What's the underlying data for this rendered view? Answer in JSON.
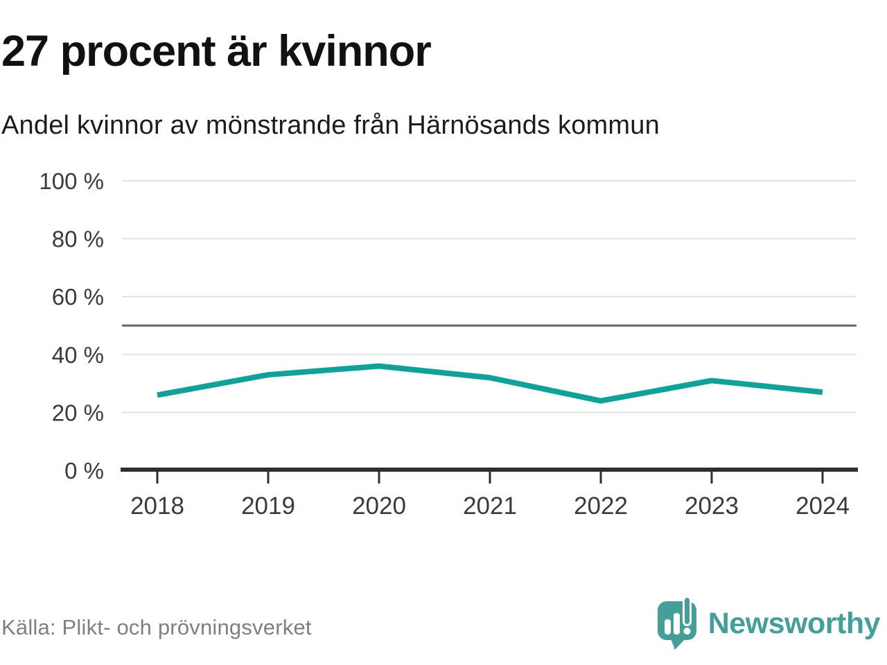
{
  "header": {
    "title": "27 procent är kvinnor",
    "subtitle": "Andel kvinnor av mönstrande från Härnösands kommun"
  },
  "chart_data": {
    "type": "line",
    "title": "27 procent är kvinnor",
    "subtitle": "Andel kvinnor av mönstrande från Härnösands kommun",
    "x": [
      2018,
      2019,
      2020,
      2021,
      2022,
      2023,
      2024
    ],
    "series": [
      {
        "name": "Andel kvinnor av mönstrande",
        "values": [
          26,
          33,
          36,
          32,
          24,
          31,
          27
        ]
      }
    ],
    "ylim": [
      0,
      100
    ],
    "yticks": [
      0,
      20,
      40,
      60,
      80,
      100
    ],
    "ytick_suffix": " %",
    "reference_line": 50,
    "grid": true,
    "legend": "none",
    "colors": {
      "line": "#12a19a",
      "grid": "#e3e3e3",
      "reference": "#636363",
      "axis": "#2e2e2e",
      "tick_label": "#3a3a3a"
    }
  },
  "footer": {
    "source": "Källa: Plikt- och prövningsverket",
    "brand": "Newsworthy",
    "brand_color": "#459e99"
  }
}
